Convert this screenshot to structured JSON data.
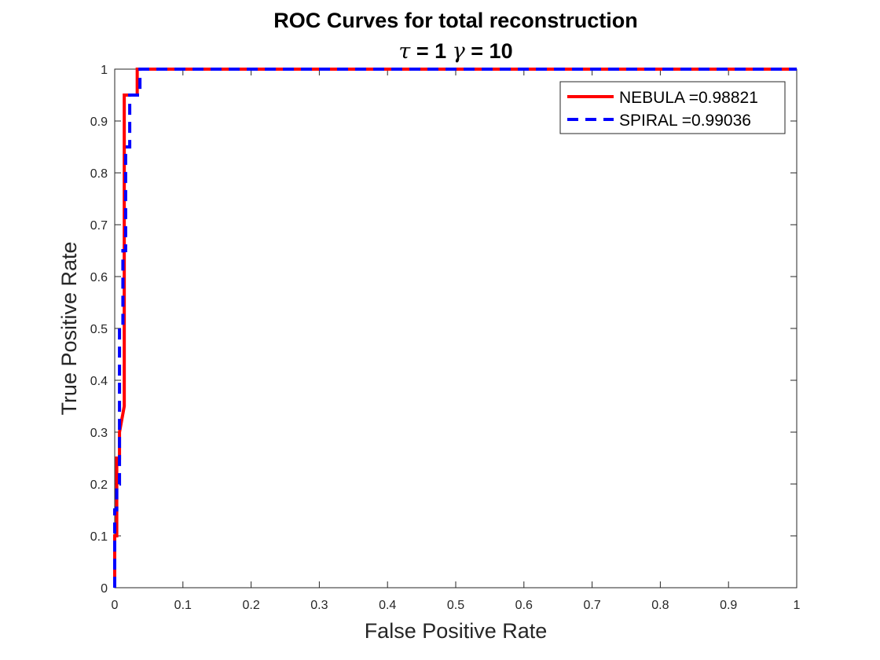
{
  "chart_data": {
    "type": "line",
    "title": "ROC Curves for total reconstruction",
    "subtitle": {
      "tau_symbol": "τ",
      "tau_text": " = 1 ",
      "gamma_symbol": "γ",
      "gamma_text": " = 10"
    },
    "xlabel": "False Positive Rate",
    "ylabel": "True Positive Rate",
    "xlim": [
      0,
      1
    ],
    "ylim": [
      0,
      1
    ],
    "xticks": [
      "0",
      "0.1",
      "0.2",
      "0.3",
      "0.4",
      "0.5",
      "0.6",
      "0.7",
      "0.8",
      "0.9",
      "1"
    ],
    "yticks": [
      "0",
      "0.1",
      "0.2",
      "0.3",
      "0.4",
      "0.5",
      "0.6",
      "0.7",
      "0.8",
      "0.9",
      "1"
    ],
    "grid": false,
    "legend_position": "top-right",
    "series": [
      {
        "name": "NEBULA =0.98821",
        "color": "#ff0000",
        "style": "solid",
        "x": [
          0,
          0,
          0.003,
          0.003,
          0.007,
          0.007,
          0.014,
          0.014,
          0.033,
          0.033,
          1
        ],
        "y": [
          0,
          0.1,
          0.1,
          0.25,
          0.25,
          0.3,
          0.35,
          0.95,
          0.95,
          1,
          1
        ]
      },
      {
        "name": "SPIRAL  =0.99036",
        "color": "#0000ff",
        "style": "dashed",
        "x": [
          0,
          0,
          0.003,
          0.003,
          0.007,
          0.007,
          0.012,
          0.012,
          0.016,
          0.016,
          0.022,
          0.022,
          0.037,
          0.037,
          1
        ],
        "y": [
          0,
          0.15,
          0.15,
          0.2,
          0.2,
          0.5,
          0.5,
          0.65,
          0.65,
          0.85,
          0.85,
          0.95,
          0.95,
          1,
          1
        ]
      }
    ]
  }
}
